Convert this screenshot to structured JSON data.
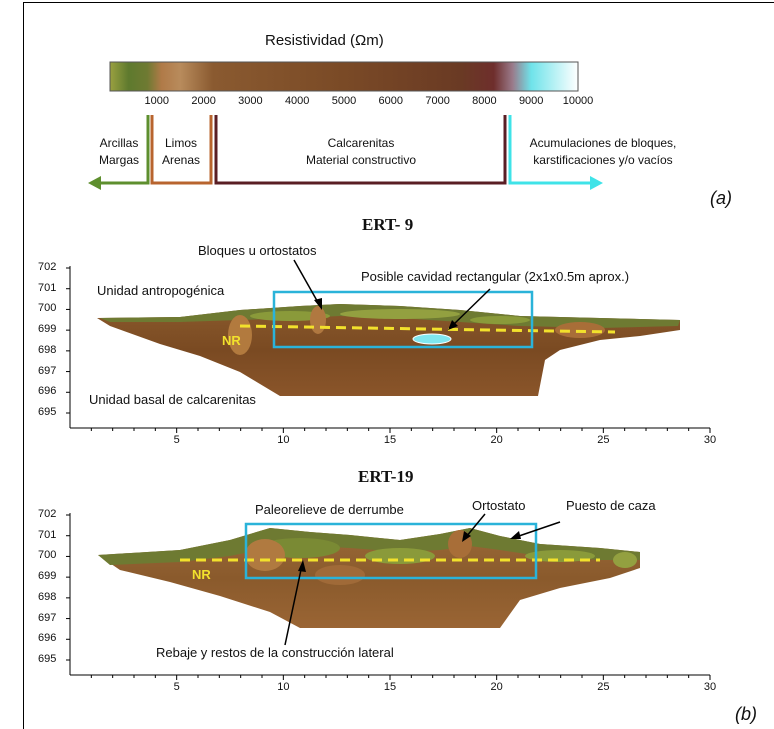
{
  "legend": {
    "title": "Resistividad (Ωm)",
    "ticks": [
      "1000",
      "2000",
      "3000",
      "4000",
      "5000",
      "6000",
      "7000",
      "8000",
      "9000",
      "10000"
    ],
    "categories": [
      {
        "line1": "Arcillas",
        "line2": "Margas",
        "color": "#5e8f2e"
      },
      {
        "line1": "Limos",
        "line2": "Arenas",
        "color": "#b8642e"
      },
      {
        "line1": "Calcarenitas",
        "line2": "Material constructivo",
        "color": "#5a1e24"
      },
      {
        "line1": "Acumulaciones de bloques,",
        "line2": "karstificaciones y/o vacíos",
        "color": "#3fe3e8"
      }
    ]
  },
  "panel_a_label": "(a)",
  "panel_b_label": "(b)",
  "ert9": {
    "title": "ERT- 9",
    "y_ticks": [
      "702",
      "701",
      "700",
      "699",
      "698",
      "697",
      "696",
      "695"
    ],
    "x_ticks": [
      "5",
      "10",
      "15",
      "20",
      "25",
      "30"
    ],
    "labels": {
      "bloques": "Bloques u ortostatos",
      "cavidad": "Posible cavidad rectangular (2x1x0.5m aprox.)",
      "antropogenica": "Unidad antropogénica",
      "nr": "NR",
      "basal": "Unidad basal de calcarenitas"
    }
  },
  "ert19": {
    "title": "ERT-19",
    "y_ticks": [
      "702",
      "701",
      "700",
      "699",
      "698",
      "697",
      "696",
      "695"
    ],
    "x_ticks": [
      "5",
      "10",
      "15",
      "20",
      "25",
      "30"
    ],
    "labels": {
      "paleorelieve": "Paleorelieve de derrumbe",
      "ortostato": "Ortostato",
      "puesto": "Puesto de caza",
      "nr": "NR",
      "rebaje": "Rebaje y restos de la construcción lateral"
    }
  },
  "colors": {
    "box": "#2ab3d9",
    "nr_line": "#f2e12c",
    "soil_dark": "#7a4a22",
    "soil_mid": "#9a6434",
    "soil_light": "#b5793f"
  }
}
